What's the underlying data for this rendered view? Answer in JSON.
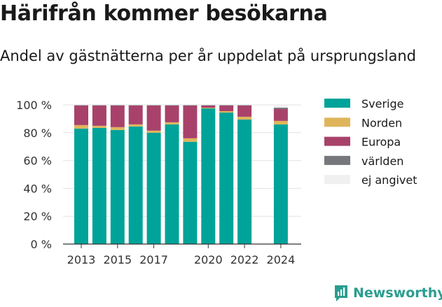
{
  "title": "Härifrån kommer besökarna",
  "subtitle": "Andel av gästnätterna per år uppdelat på ursprungsland",
  "brand": "Newsworthy",
  "chart_data": {
    "type": "bar",
    "stacked": true,
    "years": [
      2013,
      2014,
      2015,
      2016,
      2017,
      2018,
      2019,
      2020,
      2021,
      2022,
      2024
    ],
    "ylim": [
      0,
      100
    ],
    "yticks": [
      0,
      20,
      40,
      60,
      80,
      100
    ],
    "ytick_labels": [
      "0 %",
      "20 %",
      "40 %",
      "60 %",
      "80 %",
      "100 %"
    ],
    "xticks": [
      2013,
      2015,
      2017,
      2020,
      2022,
      2024
    ],
    "grid": true,
    "legend_position": "right",
    "series": [
      {
        "name": "Sverige",
        "color": "#00a399",
        "values": [
          83,
          83.5,
          82,
          84.5,
          80,
          86,
          73.5,
          97.5,
          94.5,
          89.5,
          86
        ]
      },
      {
        "name": "Norden",
        "color": "#dfb55b",
        "values": [
          2.5,
          1.5,
          2,
          1.5,
          1.5,
          1.5,
          2.5,
          0.5,
          1,
          2,
          2.5
        ]
      },
      {
        "name": "Europa",
        "color": "#a8426b",
        "values": [
          14,
          14.5,
          15.5,
          13.5,
          18,
          12,
          23.5,
          1.5,
          4,
          8,
          8.5
        ]
      },
      {
        "name": "världen",
        "color": "#76777c",
        "values": [
          0.3,
          0.3,
          0.3,
          0.3,
          0.3,
          0.3,
          0.3,
          0.3,
          0.3,
          0.3,
          1
        ]
      },
      {
        "name": "ej angivet",
        "color": "#f0f0f0",
        "values": [
          0.2,
          0.2,
          0.2,
          0.2,
          0.2,
          0.2,
          0.2,
          0.2,
          0.2,
          0.2,
          2
        ]
      }
    ]
  }
}
